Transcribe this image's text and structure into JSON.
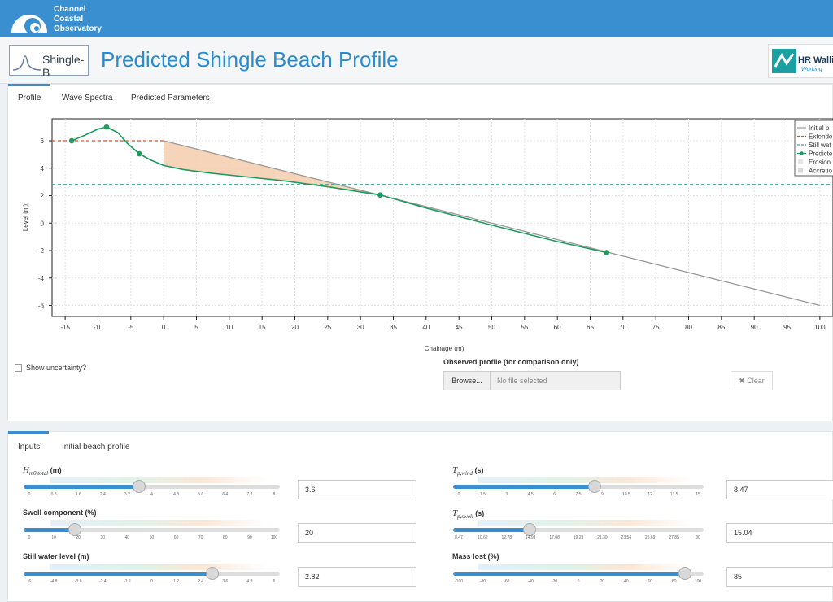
{
  "brand": {
    "line1": "Channel",
    "line2": "Coastal",
    "line3": "Observatory"
  },
  "app_logo": "Shingle-B",
  "page_title": "Predicted Shingle Beach Profile",
  "partner_logo": {
    "name": "HR Walli",
    "tagline": "Working"
  },
  "top_tabs": [
    "Profile",
    "Wave Spectra",
    "Predicted Parameters"
  ],
  "chart_data": {
    "type": "line",
    "xlabel": "Chainage (m)",
    "ylabel": "Level (m)",
    "xlim": [
      -17,
      102
    ],
    "ylim": [
      -6.8,
      7.6
    ],
    "xticks": [
      -15,
      -10,
      -5,
      0,
      5,
      10,
      15,
      20,
      25,
      30,
      35,
      40,
      45,
      50,
      55,
      60,
      65,
      70,
      75,
      80,
      85,
      90,
      95,
      100
    ],
    "yticks": [
      -6,
      -4,
      -2,
      0,
      2,
      4,
      6
    ],
    "series": [
      {
        "name": "Initial p",
        "style": "gray",
        "x": [
          0,
          100
        ],
        "y": [
          6,
          -6
        ]
      },
      {
        "name": "Extende",
        "style": "red-dashed",
        "x": [
          -17,
          0
        ],
        "y": [
          6,
          6
        ]
      },
      {
        "name": "Still wat",
        "style": "teal-dashed",
        "x": [
          -17,
          102
        ],
        "y": [
          2.82,
          2.82
        ]
      },
      {
        "name": "Predicte",
        "style": "green-markers",
        "x": [
          -14,
          -12,
          -10,
          -8.7,
          -7,
          -5.5,
          -3.7,
          -2,
          0,
          3,
          7,
          12,
          18,
          25,
          33,
          40,
          50,
          60,
          67.5
        ],
        "y": [
          6,
          6.4,
          6.85,
          7,
          6.6,
          5.8,
          5.05,
          4.6,
          4.2,
          3.9,
          3.65,
          3.4,
          3.1,
          2.65,
          2.05,
          1.1,
          -0.15,
          -1.35,
          -2.15
        ],
        "markers_x": [
          -14,
          -8.7,
          -3.7,
          33,
          67.5
        ],
        "markers_y": [
          6,
          7,
          5.05,
          2.05,
          -2.15
        ]
      },
      {
        "name": "Erosion",
        "style": "area"
      },
      {
        "name": "Accretio",
        "style": "area"
      }
    ]
  },
  "show_uncertainty_label": "Show uncertainty?",
  "observed_label": "Observed profile (for comparison only)",
  "browse_label": "Browse...",
  "file_placeholder": "No file selected",
  "clear_label": "✖ Clear",
  "bottom_tabs": [
    "Inputs",
    "Initial beach profile"
  ],
  "inputs": [
    {
      "label_main": "H",
      "label_sub": "m0,total",
      "label_unit": "(m)",
      "value": "3.6",
      "ticks": [
        "0",
        "0.8",
        "1.6",
        "2.4",
        "3.2",
        "4",
        "4.8",
        "5.6",
        "6.4",
        "7.2",
        "8"
      ],
      "fraction": 0.45
    },
    {
      "label_plain": "Swell component (%)",
      "value": "20",
      "ticks": [
        "0",
        "10",
        "20",
        "30",
        "40",
        "50",
        "60",
        "70",
        "80",
        "90",
        "100"
      ],
      "fraction": 0.2
    },
    {
      "label_plain": "Still water level (m)",
      "value": "2.82",
      "ticks": [
        "-6",
        "-4.8",
        "-3.6",
        "-2.4",
        "-1.2",
        "0",
        "1.2",
        "2.4",
        "3.6",
        "4.8",
        "6"
      ],
      "fraction": 0.735
    },
    {
      "label_main": "T",
      "label_sub": "p,wind",
      "label_unit": "(s)",
      "value": "8.47",
      "ticks": [
        "0",
        "1.5",
        "3",
        "4.5",
        "6",
        "7.5",
        "9",
        "10.5",
        "12",
        "13.5",
        "15"
      ],
      "fraction": 0.565
    },
    {
      "label_main": "T",
      "label_sub": "p,swell",
      "label_unit": "(s)",
      "value": "15.04",
      "ticks": [
        "8.47",
        "10.62",
        "12.78",
        "14.93",
        "17.08",
        "19.23",
        "21.39",
        "23.54",
        "25.69",
        "27.85",
        "30"
      ],
      "fraction": 0.305
    },
    {
      "label_plain": "Mass lost (%)",
      "value": "85",
      "ticks": [
        "-100",
        "-80",
        "-60",
        "-40",
        "-20",
        "0",
        "20",
        "40",
        "60",
        "80",
        "100"
      ],
      "fraction": 0.925
    }
  ]
}
